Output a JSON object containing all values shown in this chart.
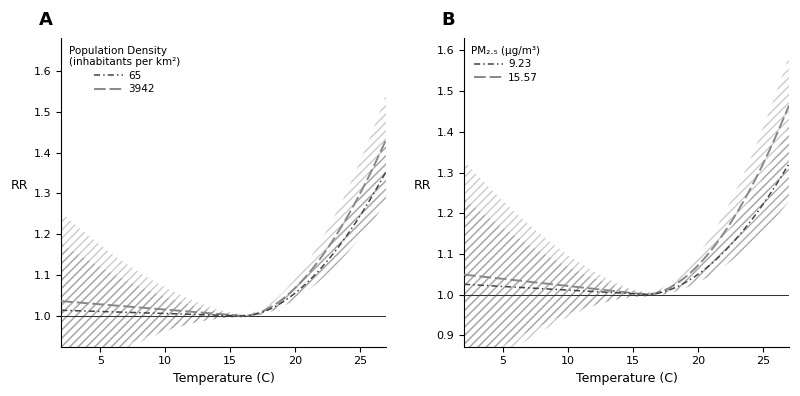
{
  "panel_A": {
    "label": "A",
    "legend_title": "Population Density\n(inhabitants per km²)",
    "series": [
      {
        "name": "65",
        "linestyle": "dashdot",
        "color": "#444444"
      },
      {
        "name": "3942",
        "linestyle": "dashed",
        "color": "#888888"
      }
    ],
    "xlabel": "Temperature (C)",
    "ylabel": "RR",
    "xlim": [
      2,
      27
    ],
    "xticks": [
      5,
      10,
      15,
      20,
      25
    ],
    "yticks": [
      1.0,
      1.1,
      1.2,
      1.3,
      1.4,
      1.5,
      1.6
    ],
    "ylim": [
      0.925,
      1.68
    ]
  },
  "panel_B": {
    "label": "B",
    "legend_title": "PM₂.₅ (μg/m³)",
    "series": [
      {
        "name": "9.23",
        "linestyle": "dashdot",
        "color": "#444444"
      },
      {
        "name": "15.57",
        "linestyle": "dashed",
        "color": "#888888"
      }
    ],
    "xlabel": "Temperature (C)",
    "ylabel": "RR",
    "xlim": [
      2,
      27
    ],
    "xticks": [
      5,
      10,
      15,
      20,
      25
    ],
    "yticks": [
      0.9,
      1.0,
      1.1,
      1.2,
      1.3,
      1.4,
      1.5,
      1.6
    ],
    "ylim": [
      0.872,
      1.63
    ]
  },
  "pivot_temp": 16.0,
  "ref_line_color": "#333333",
  "hatch_dark": "#aaaaaa",
  "hatch_light": "#cccccc"
}
